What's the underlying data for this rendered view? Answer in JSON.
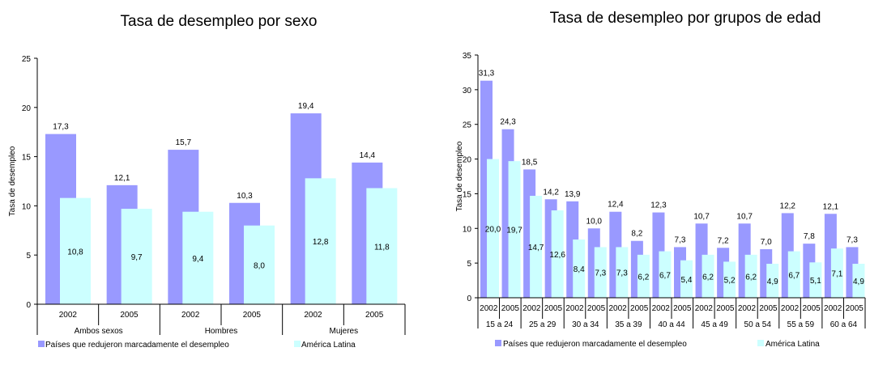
{
  "colors": {
    "series_a": "#9999ff",
    "series_b": "#ccffff",
    "axis": "#000000"
  },
  "chart_data": [
    {
      "type": "bar",
      "title": "Tasa de desempleo por sexo",
      "ylabel": "Tasa de desempleo",
      "ylim": [
        0,
        25
      ],
      "yticks": [
        0,
        5,
        10,
        15,
        20,
        25
      ],
      "categories": [
        "2002",
        "2005",
        "2002",
        "2005",
        "2002",
        "2005"
      ],
      "groups": [
        "Ambos sexos",
        "Hombres",
        "Mujeres"
      ],
      "series": [
        {
          "name": "Países que redujeron marcadamente el desempleo",
          "values": [
            17.3,
            12.1,
            15.7,
            10.3,
            19.4,
            14.4
          ],
          "labels": [
            "17,3",
            "12,1",
            "15,7",
            "10,3",
            "19,4",
            "14,4"
          ]
        },
        {
          "name": "América Latina",
          "values": [
            10.8,
            9.7,
            9.4,
            8.0,
            12.8,
            11.8
          ],
          "labels": [
            "10,8",
            "9,7",
            "9,4",
            "8,0",
            "12,8",
            "11,8"
          ]
        }
      ],
      "grid": false,
      "legend": "bottom"
    },
    {
      "type": "bar",
      "title": "Tasa de desempleo por grupos de edad",
      "ylabel": "Tasa de desempleo",
      "ylim": [
        0,
        35
      ],
      "yticks": [
        0,
        5,
        10,
        15,
        20,
        25,
        30,
        35
      ],
      "categories": [
        "2002",
        "2005",
        "2002",
        "2005",
        "2002",
        "2005",
        "2002",
        "2005",
        "2002",
        "2005",
        "2002",
        "2005",
        "2002",
        "2005",
        "2002",
        "2005",
        "2002",
        "2005"
      ],
      "groups": [
        "15 a 24",
        "25 a 29",
        "30 a 34",
        "35 a 39",
        "40 a 44",
        "45 a 49",
        "50 a 54",
        "55 a 59",
        "60 a 64"
      ],
      "series": [
        {
          "name": "Países que redujeron marcadamente el desempleo",
          "values": [
            31.3,
            24.3,
            18.5,
            14.2,
            13.9,
            10.0,
            12.4,
            8.2,
            12.3,
            7.3,
            10.7,
            7.2,
            10.7,
            7.0,
            12.2,
            7.8,
            12.1,
            7.3
          ],
          "labels": [
            "31,3",
            "24,3",
            "18,5",
            "14,2",
            "13,9",
            "10,0",
            "12,4",
            "8,2",
            "12,3",
            "7,3",
            "10,7",
            "7,2",
            "10,7",
            "7,0",
            "12,2",
            "7,8",
            "12,1",
            "7,3"
          ]
        },
        {
          "name": "América Latina",
          "values": [
            20.0,
            19.7,
            14.7,
            12.6,
            8.4,
            7.3,
            7.3,
            6.2,
            6.7,
            5.4,
            6.2,
            5.2,
            6.2,
            4.9,
            6.7,
            5.1,
            7.1,
            4.9
          ],
          "labels": [
            "20,0",
            "19,7",
            "14,7",
            "12,6",
            "8,4",
            "7,3",
            "7,3",
            "6,2",
            "6,7",
            "5,4",
            "6,2",
            "5,2",
            "6,2",
            "4,9",
            "6,7",
            "5,1",
            "7,1",
            "4,9"
          ]
        }
      ],
      "grid": false,
      "legend": "bottom"
    }
  ]
}
